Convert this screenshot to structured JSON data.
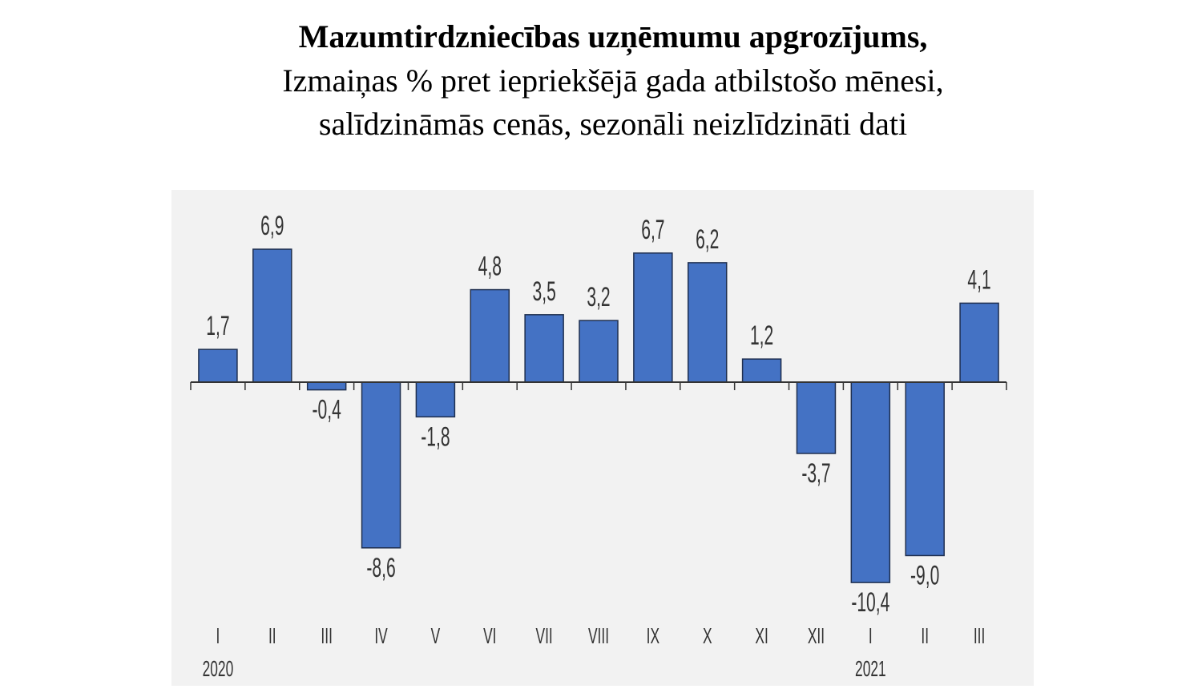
{
  "chart_data": {
    "type": "bar",
    "title": "Mazumtirdzniecības uzņēmumu apgrozījums,",
    "subtitle_lines": [
      "Izmaiņas % pret iepriekšējā gada atbilstošo mēnesi,",
      "salīdzināmās cenās, sezonāli neizlīdzināti dati"
    ],
    "categories": [
      "I",
      "II",
      "III",
      "IV",
      "V",
      "VI",
      "VII",
      "VIII",
      "IX",
      "X",
      "XI",
      "XII",
      "I",
      "II",
      "III"
    ],
    "year_labels": [
      {
        "index": 0,
        "label": "2020"
      },
      {
        "index": 12,
        "label": "2021"
      }
    ],
    "values": [
      1.7,
      6.9,
      -0.4,
      -8.6,
      -1.8,
      4.8,
      3.5,
      3.2,
      6.7,
      6.2,
      1.2,
      -3.7,
      -10.4,
      -9.0,
      4.1
    ],
    "value_labels": [
      "1,7",
      "6,9",
      "-0,4",
      "-8,6",
      "-1,8",
      "4,8",
      "3,5",
      "3,2",
      "6,7",
      "6,2",
      "1,2",
      "-3,7",
      "-10,4",
      "-9,0",
      "4,1"
    ],
    "xlabel": "",
    "ylabel": "",
    "ylim": [
      -10.4,
      6.9
    ],
    "grid": false,
    "bar_color": "#4472c4",
    "panel_background": "#f2f2f2"
  }
}
